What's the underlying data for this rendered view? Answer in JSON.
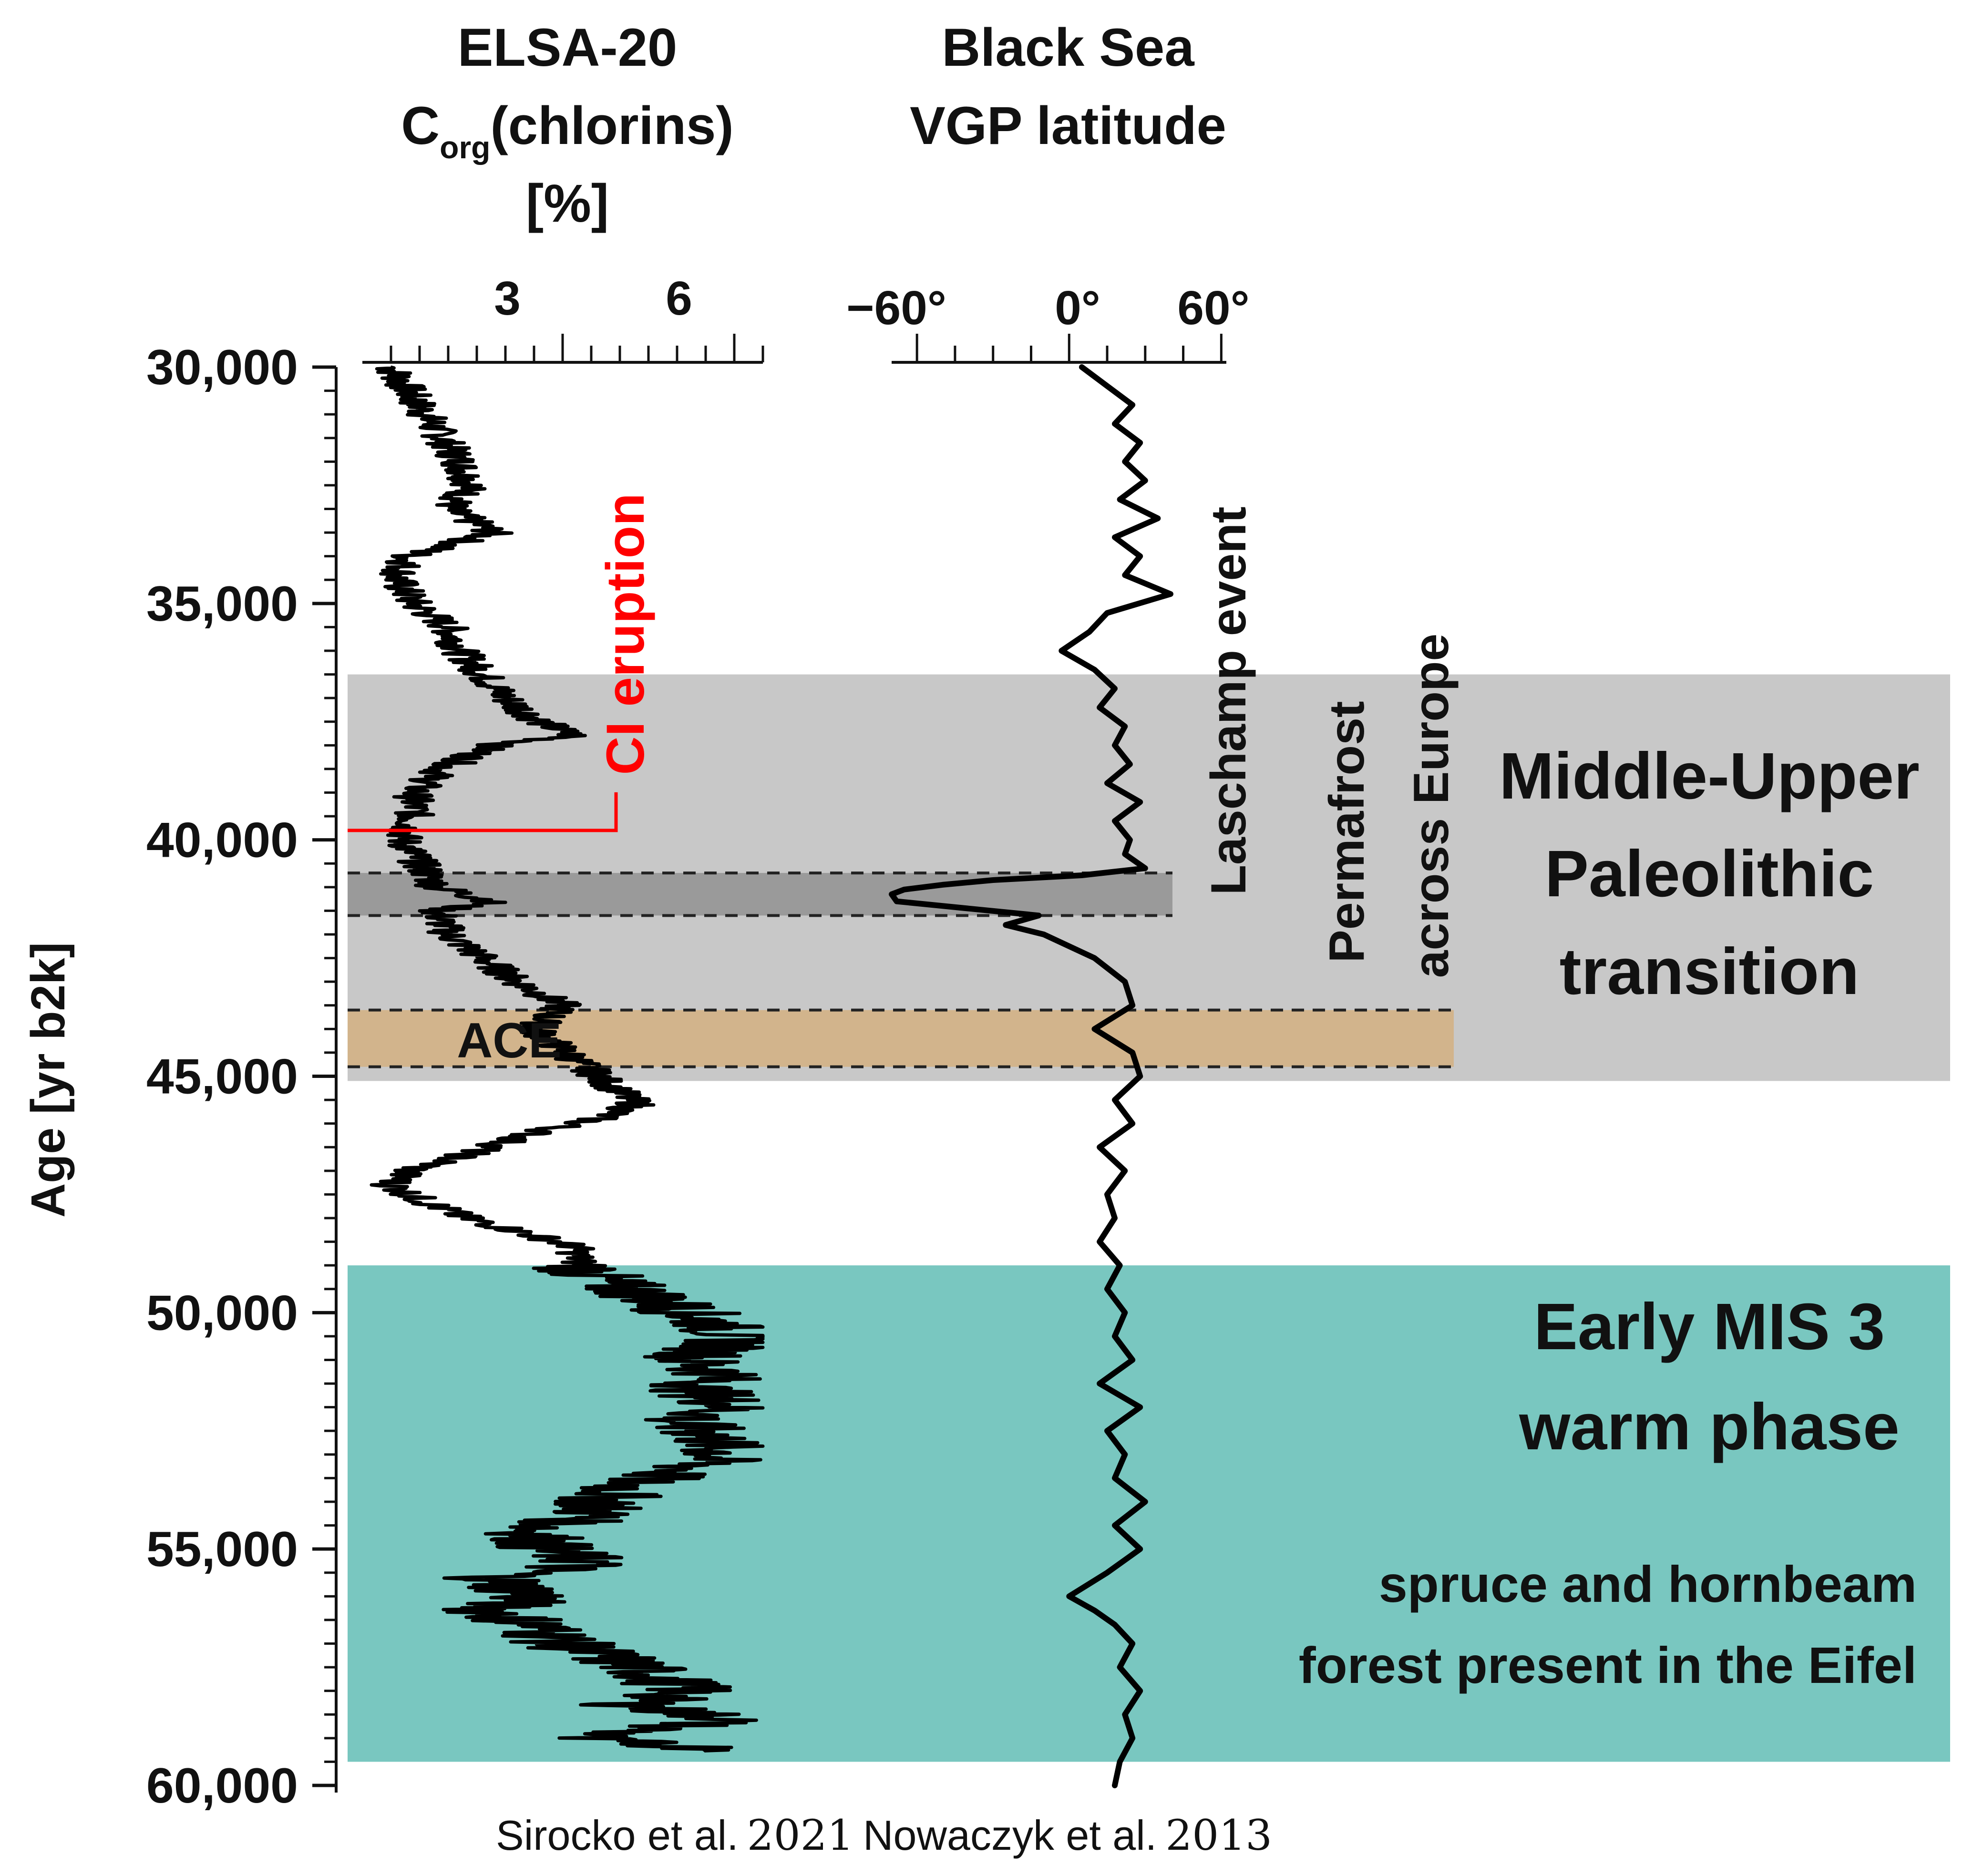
{
  "chart_data": {
    "type": "line",
    "y_axis": {
      "label": "Age [yr b2k]",
      "range": [
        30000,
        60000
      ],
      "reversed": true,
      "ticks": [
        "30,000",
        "35,000",
        "40,000",
        "45,000",
        "50,000",
        "55,000",
        "60,000"
      ]
    },
    "panels": [
      {
        "id": "elsa",
        "title_line1": "ELSA-20",
        "title_line2_main": "C",
        "title_line2_sub": "org",
        "title_line2_rest": "(chlorins)",
        "title_line3": "[%]",
        "xlim": [
          -0.5,
          6.5
        ],
        "ticks": [
          "3",
          "6"
        ],
        "credit_name": "Sirocko et al.",
        "credit_year": "2021",
        "series": {
          "age": [
            30000,
            30500,
            31000,
            31500,
            32000,
            32500,
            33000,
            33500,
            34000,
            34500,
            35000,
            35500,
            36000,
            36500,
            37000,
            37500,
            37800,
            38000,
            38500,
            39000,
            39500,
            40000,
            40500,
            41000,
            41300,
            41500,
            42000,
            42500,
            43000,
            43500,
            44000,
            45600,
            45900,
            46200,
            46700,
            47000,
            47300,
            47600,
            48000,
            48300,
            48600,
            49000,
            49300,
            49600,
            50000,
            50300,
            50600,
            51000,
            51300,
            51600,
            52000,
            52300,
            52600,
            53000,
            53300,
            53600,
            54000,
            54300,
            54600,
            55000,
            55300,
            55600,
            56000,
            56300,
            56600,
            57000,
            57300,
            57600,
            58000,
            58300,
            58600,
            59000,
            59300
          ],
          "value": [
            0.0,
            0.3,
            0.6,
            0.9,
            1.2,
            1.4,
            1.0,
            1.8,
            0.3,
            0.1,
            0.4,
            1.0,
            1.2,
            1.6,
            2.0,
            2.6,
            3.2,
            1.8,
            0.9,
            0.4,
            0.4,
            0.2,
            0.5,
            0.8,
            1.8,
            0.8,
            1.0,
            1.6,
            2.2,
            3.0,
            2.5,
            4.3,
            3.6,
            2.5,
            1.2,
            0.3,
            0.0,
            0.5,
            1.3,
            2.3,
            3.2,
            3.3,
            3.6,
            4.4,
            5.2,
            5.8,
            6.0,
            5.2,
            5.8,
            5.3,
            6.0,
            5.0,
            5.6,
            5.8,
            5.2,
            4.2,
            3.7,
            3.5,
            2.5,
            2.7,
            3.5,
            1.8,
            2.5,
            1.7,
            2.5,
            3.0,
            3.8,
            4.5,
            5.2,
            4.2,
            6.0,
            3.2,
            6.5
          ]
        }
      },
      {
        "id": "vgp",
        "title_line1": "Black Sea",
        "title_line2": "VGP latitude",
        "xlim": [
          -70,
          62
        ],
        "ticks": [
          "−60°",
          "0°",
          "60°"
        ],
        "credit_name": "Nowaczyk et al.",
        "credit_year": "2013",
        "series": {
          "age": [
            30000,
            30400,
            30800,
            31200,
            31600,
            32000,
            32400,
            32800,
            33200,
            33600,
            34000,
            34400,
            34800,
            35200,
            35600,
            36000,
            36400,
            36800,
            37200,
            37600,
            38000,
            38400,
            38800,
            39200,
            39600,
            40000,
            40300,
            40600,
            40750,
            40850,
            40950,
            41050,
            41150,
            41300,
            41450,
            41600,
            41800,
            42000,
            42500,
            43000,
            43500,
            44000,
            44500,
            45000,
            45500,
            46000,
            46500,
            47000,
            47500,
            48000,
            48500,
            49000,
            49500,
            50000,
            50500,
            51000,
            51500,
            52000,
            52500,
            53000,
            53500,
            54000,
            54500,
            55000,
            55500,
            56000,
            56300,
            56600,
            57000,
            57500,
            58000,
            58500,
            59000,
            59500,
            60000
          ],
          "value": [
            5,
            15,
            25,
            18,
            28,
            22,
            30,
            20,
            35,
            18,
            28,
            22,
            40,
            15,
            8,
            -3,
            10,
            18,
            12,
            22,
            18,
            24,
            15,
            28,
            18,
            24,
            22,
            30,
            5,
            -30,
            -50,
            -65,
            -70,
            -68,
            -40,
            -12,
            -25,
            -10,
            10,
            22,
            25,
            10,
            25,
            28,
            18,
            25,
            12,
            22,
            15,
            18,
            12,
            20,
            15,
            22,
            18,
            25,
            12,
            28,
            15,
            22,
            18,
            30,
            18,
            28,
            15,
            0,
            10,
            18,
            25,
            20,
            28,
            22,
            25,
            20,
            18
          ]
        }
      }
    ],
    "annotations": {
      "ci_eruption": {
        "label": "CI eruption",
        "age": 39800,
        "color": "#ff0000"
      },
      "laschamp": {
        "label": "Laschamp event",
        "age_range": [
          40700,
          41600
        ]
      },
      "ace": {
        "label": "ACE",
        "age_range": [
          43600,
          44800
        ]
      },
      "permafrost_line1": "Permafrost",
      "permafrost_line2": "across Europe",
      "mupt": {
        "line1": "Middle-Upper",
        "line2": "Paleolithic",
        "line3": "transition",
        "age_range": [
          36500,
          45100
        ]
      },
      "mis3": {
        "line1": "Early MIS 3",
        "line2": "warm phase",
        "line3": "spruce and hornbeam",
        "line4": "forest present in the Eifel",
        "age_range": [
          49000,
          59500
        ]
      }
    },
    "colors": {
      "mupt_band": "#c8c8c8",
      "laschamp_band": "#9a9a9a",
      "ace_band": "#d2b48c",
      "mis3_band": "#79c7c0",
      "series": "#000000",
      "ci": "#ff0000"
    }
  }
}
